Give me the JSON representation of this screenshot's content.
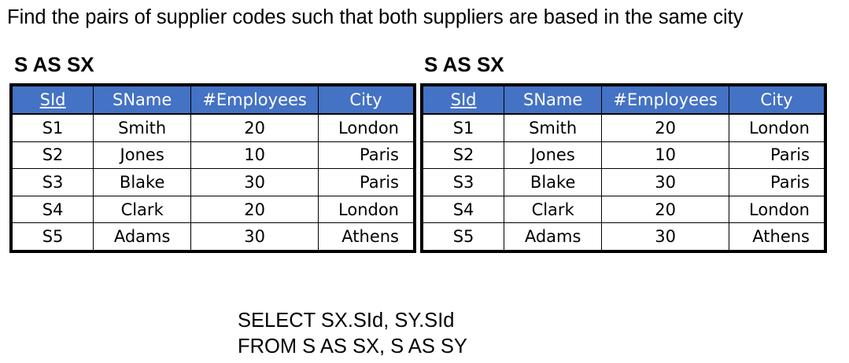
{
  "title": "Find the pairs of supplier codes such that both suppliers are based in the same city",
  "tables": [
    {
      "caption": "S AS SX",
      "columns": [
        "SId",
        "SName",
        "#Employees",
        "City"
      ],
      "rows": [
        [
          "S1",
          "Smith",
          "20",
          "London"
        ],
        [
          "S2",
          "Jones",
          "10",
          "Paris"
        ],
        [
          "S3",
          "Blake",
          "30",
          "Paris"
        ],
        [
          "S4",
          "Clark",
          "20",
          "London"
        ],
        [
          "S5",
          "Adams",
          "30",
          "Athens"
        ]
      ]
    },
    {
      "caption": "S AS SX",
      "columns": [
        "SId",
        "SName",
        "#Employees",
        "City"
      ],
      "rows": [
        [
          "S1",
          "Smith",
          "20",
          "London"
        ],
        [
          "S2",
          "Jones",
          "10",
          "Paris"
        ],
        [
          "S3",
          "Blake",
          "30",
          "Paris"
        ],
        [
          "S4",
          "Clark",
          "20",
          "London"
        ],
        [
          "S5",
          "Adams",
          "30",
          "Athens"
        ]
      ]
    }
  ],
  "sql": {
    "line1": "SELECT SX.SId, SY.SId",
    "line2": "FROM S AS SX, S AS SY"
  },
  "colors": {
    "header_bg": "#4472c4",
    "header_text": "#ffffff"
  }
}
